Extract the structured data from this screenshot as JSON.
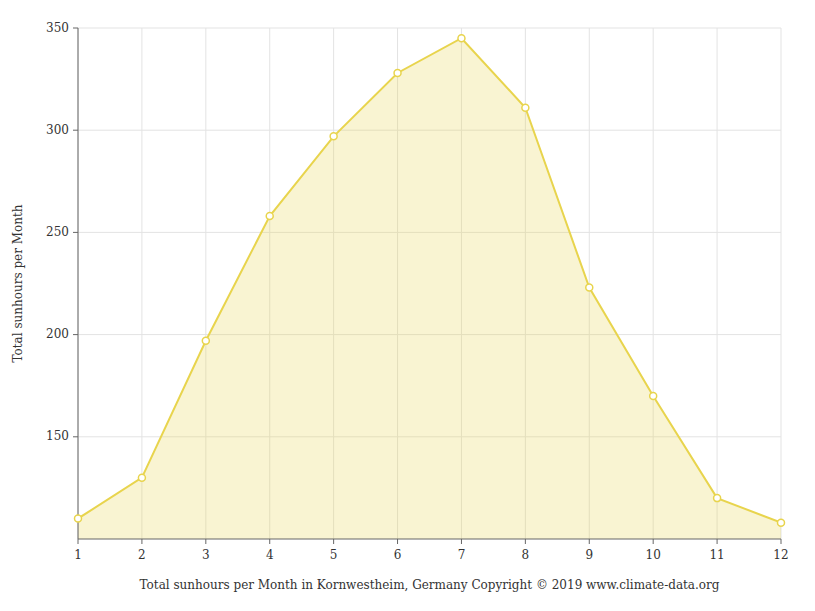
{
  "chart_data": {
    "type": "area",
    "xlabel": "Total sunhours per Month in Kornwestheim, Germany Copyright © 2019 www.climate-data.org",
    "ylabel": "Total sunhours per Month",
    "x": [
      1,
      2,
      3,
      4,
      5,
      6,
      7,
      8,
      9,
      10,
      11,
      12
    ],
    "values": [
      110,
      130,
      197,
      258,
      297,
      328,
      345,
      311,
      223,
      170,
      120,
      108
    ],
    "color": "#E8D44D",
    "marker": "circle",
    "xlim": [
      1,
      12
    ],
    "ylim": [
      100,
      350
    ],
    "xticks": [
      1,
      2,
      3,
      4,
      5,
      6,
      7,
      8,
      9,
      10,
      11,
      12
    ],
    "yticks": [
      150,
      200,
      250,
      300,
      350
    ],
    "grid": true
  }
}
